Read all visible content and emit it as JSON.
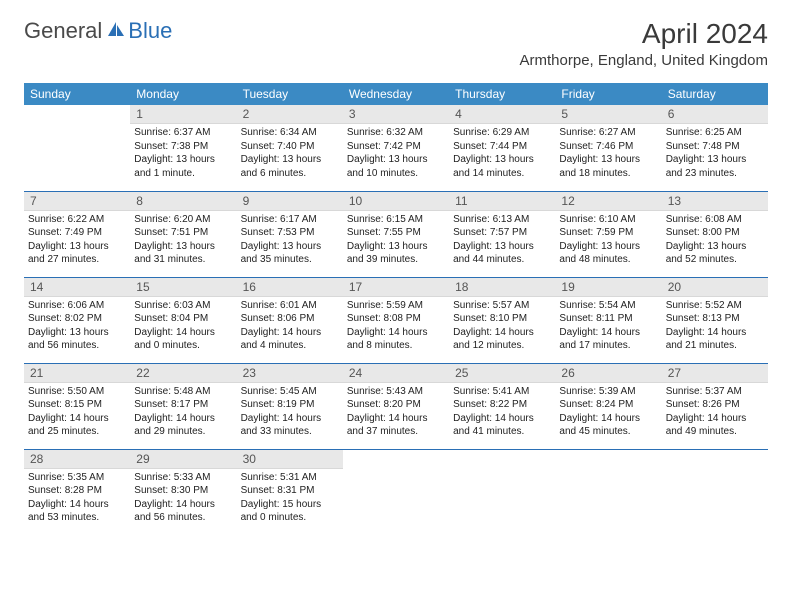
{
  "logo": {
    "text1": "General",
    "text2": "Blue"
  },
  "title": "April 2024",
  "location": "Armthorpe, England, United Kingdom",
  "dayNames": [
    "Sunday",
    "Monday",
    "Tuesday",
    "Wednesday",
    "Thursday",
    "Friday",
    "Saturday"
  ],
  "colors": {
    "header_bg": "#3b8ac4",
    "border": "#2a6fb5",
    "daynum_bg": "#e8e8e8"
  },
  "weeks": [
    [
      {
        "n": "",
        "sr": "",
        "ss": "",
        "dl": ""
      },
      {
        "n": "1",
        "sr": "Sunrise: 6:37 AM",
        "ss": "Sunset: 7:38 PM",
        "dl": "Daylight: 13 hours and 1 minute."
      },
      {
        "n": "2",
        "sr": "Sunrise: 6:34 AM",
        "ss": "Sunset: 7:40 PM",
        "dl": "Daylight: 13 hours and 6 minutes."
      },
      {
        "n": "3",
        "sr": "Sunrise: 6:32 AM",
        "ss": "Sunset: 7:42 PM",
        "dl": "Daylight: 13 hours and 10 minutes."
      },
      {
        "n": "4",
        "sr": "Sunrise: 6:29 AM",
        "ss": "Sunset: 7:44 PM",
        "dl": "Daylight: 13 hours and 14 minutes."
      },
      {
        "n": "5",
        "sr": "Sunrise: 6:27 AM",
        "ss": "Sunset: 7:46 PM",
        "dl": "Daylight: 13 hours and 18 minutes."
      },
      {
        "n": "6",
        "sr": "Sunrise: 6:25 AM",
        "ss": "Sunset: 7:48 PM",
        "dl": "Daylight: 13 hours and 23 minutes."
      }
    ],
    [
      {
        "n": "7",
        "sr": "Sunrise: 6:22 AM",
        "ss": "Sunset: 7:49 PM",
        "dl": "Daylight: 13 hours and 27 minutes."
      },
      {
        "n": "8",
        "sr": "Sunrise: 6:20 AM",
        "ss": "Sunset: 7:51 PM",
        "dl": "Daylight: 13 hours and 31 minutes."
      },
      {
        "n": "9",
        "sr": "Sunrise: 6:17 AM",
        "ss": "Sunset: 7:53 PM",
        "dl": "Daylight: 13 hours and 35 minutes."
      },
      {
        "n": "10",
        "sr": "Sunrise: 6:15 AM",
        "ss": "Sunset: 7:55 PM",
        "dl": "Daylight: 13 hours and 39 minutes."
      },
      {
        "n": "11",
        "sr": "Sunrise: 6:13 AM",
        "ss": "Sunset: 7:57 PM",
        "dl": "Daylight: 13 hours and 44 minutes."
      },
      {
        "n": "12",
        "sr": "Sunrise: 6:10 AM",
        "ss": "Sunset: 7:59 PM",
        "dl": "Daylight: 13 hours and 48 minutes."
      },
      {
        "n": "13",
        "sr": "Sunrise: 6:08 AM",
        "ss": "Sunset: 8:00 PM",
        "dl": "Daylight: 13 hours and 52 minutes."
      }
    ],
    [
      {
        "n": "14",
        "sr": "Sunrise: 6:06 AM",
        "ss": "Sunset: 8:02 PM",
        "dl": "Daylight: 13 hours and 56 minutes."
      },
      {
        "n": "15",
        "sr": "Sunrise: 6:03 AM",
        "ss": "Sunset: 8:04 PM",
        "dl": "Daylight: 14 hours and 0 minutes."
      },
      {
        "n": "16",
        "sr": "Sunrise: 6:01 AM",
        "ss": "Sunset: 8:06 PM",
        "dl": "Daylight: 14 hours and 4 minutes."
      },
      {
        "n": "17",
        "sr": "Sunrise: 5:59 AM",
        "ss": "Sunset: 8:08 PM",
        "dl": "Daylight: 14 hours and 8 minutes."
      },
      {
        "n": "18",
        "sr": "Sunrise: 5:57 AM",
        "ss": "Sunset: 8:10 PM",
        "dl": "Daylight: 14 hours and 12 minutes."
      },
      {
        "n": "19",
        "sr": "Sunrise: 5:54 AM",
        "ss": "Sunset: 8:11 PM",
        "dl": "Daylight: 14 hours and 17 minutes."
      },
      {
        "n": "20",
        "sr": "Sunrise: 5:52 AM",
        "ss": "Sunset: 8:13 PM",
        "dl": "Daylight: 14 hours and 21 minutes."
      }
    ],
    [
      {
        "n": "21",
        "sr": "Sunrise: 5:50 AM",
        "ss": "Sunset: 8:15 PM",
        "dl": "Daylight: 14 hours and 25 minutes."
      },
      {
        "n": "22",
        "sr": "Sunrise: 5:48 AM",
        "ss": "Sunset: 8:17 PM",
        "dl": "Daylight: 14 hours and 29 minutes."
      },
      {
        "n": "23",
        "sr": "Sunrise: 5:45 AM",
        "ss": "Sunset: 8:19 PM",
        "dl": "Daylight: 14 hours and 33 minutes."
      },
      {
        "n": "24",
        "sr": "Sunrise: 5:43 AM",
        "ss": "Sunset: 8:20 PM",
        "dl": "Daylight: 14 hours and 37 minutes."
      },
      {
        "n": "25",
        "sr": "Sunrise: 5:41 AM",
        "ss": "Sunset: 8:22 PM",
        "dl": "Daylight: 14 hours and 41 minutes."
      },
      {
        "n": "26",
        "sr": "Sunrise: 5:39 AM",
        "ss": "Sunset: 8:24 PM",
        "dl": "Daylight: 14 hours and 45 minutes."
      },
      {
        "n": "27",
        "sr": "Sunrise: 5:37 AM",
        "ss": "Sunset: 8:26 PM",
        "dl": "Daylight: 14 hours and 49 minutes."
      }
    ],
    [
      {
        "n": "28",
        "sr": "Sunrise: 5:35 AM",
        "ss": "Sunset: 8:28 PM",
        "dl": "Daylight: 14 hours and 53 minutes."
      },
      {
        "n": "29",
        "sr": "Sunrise: 5:33 AM",
        "ss": "Sunset: 8:30 PM",
        "dl": "Daylight: 14 hours and 56 minutes."
      },
      {
        "n": "30",
        "sr": "Sunrise: 5:31 AM",
        "ss": "Sunset: 8:31 PM",
        "dl": "Daylight: 15 hours and 0 minutes."
      },
      {
        "n": "",
        "sr": "",
        "ss": "",
        "dl": ""
      },
      {
        "n": "",
        "sr": "",
        "ss": "",
        "dl": ""
      },
      {
        "n": "",
        "sr": "",
        "ss": "",
        "dl": ""
      },
      {
        "n": "",
        "sr": "",
        "ss": "",
        "dl": ""
      }
    ]
  ]
}
